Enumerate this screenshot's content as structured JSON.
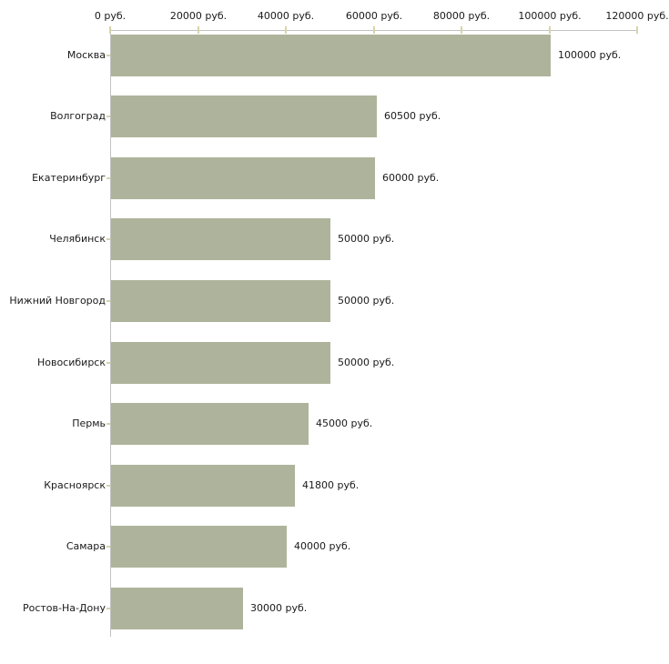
{
  "colors": {
    "bar_fill": "#adb49b",
    "axis_line": "#c2c2c2",
    "tick_mark": "#d8d4a8",
    "text": "#1a1a1a",
    "background": "#ffffff"
  },
  "chart_data": {
    "type": "bar",
    "orientation": "horizontal",
    "title": "",
    "xlabel": "",
    "ylabel": "",
    "unit": "руб.",
    "grid": false,
    "legend": false,
    "xlim": [
      0,
      120000
    ],
    "x_ticks": [
      0,
      20000,
      40000,
      60000,
      80000,
      100000,
      120000
    ],
    "x_tick_labels": [
      "0 руб.",
      "20000 руб.",
      "40000 руб.",
      "60000 руб.",
      "80000 руб.",
      "100000 руб.",
      "120000 руб."
    ],
    "categories": [
      "Москва",
      "Волгоград",
      "Екатеринбург",
      "Челябинск",
      "Нижний Новгород",
      "Новосибирск",
      "Пермь",
      "Красноярск",
      "Самара",
      "Ростов-На-Дону"
    ],
    "values": [
      100000,
      60500,
      60000,
      50000,
      50000,
      50000,
      45000,
      41800,
      40000,
      30000
    ],
    "value_labels": [
      "100000 руб.",
      "60500 руб.",
      "60000 руб.",
      "50000 руб.",
      "50000 руб.",
      "50000 руб.",
      "45000 руб.",
      "41800 руб.",
      "40000 руб.",
      "30000 руб."
    ]
  }
}
